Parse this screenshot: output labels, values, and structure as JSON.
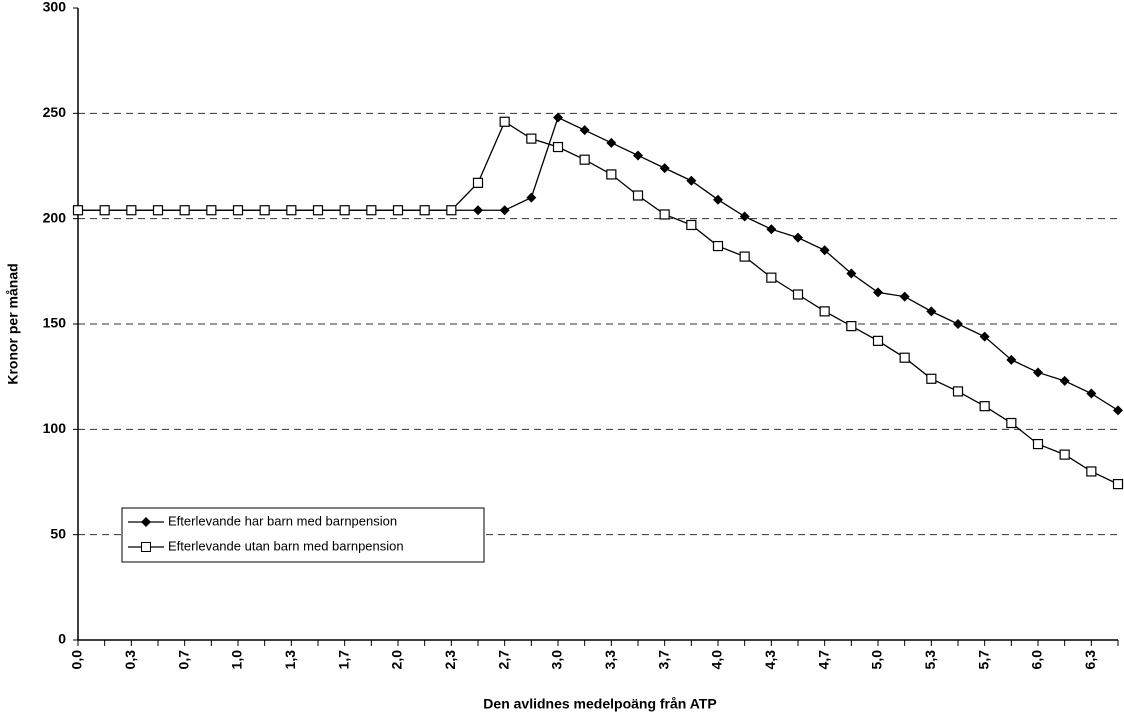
{
  "chart_data": {
    "type": "line",
    "xlabel": "Den avlidnes medelpoäng från ATP",
    "ylabel": "Kronor per månad",
    "categories": [
      "0,0",
      null,
      "0,3",
      null,
      "0,7",
      null,
      "1,0",
      null,
      "1,3",
      null,
      "1,7",
      null,
      "2,0",
      null,
      "2,3",
      null,
      "2,7",
      null,
      "3,0",
      null,
      "3,3",
      null,
      "3,7",
      null,
      "4,0",
      null,
      "4,3",
      null,
      "4,7",
      null,
      "5,0",
      null,
      "5,3",
      null,
      "5,7",
      null,
      "6,0",
      null,
      "6,3",
      null
    ],
    "series": [
      {
        "name": "Efterlevande har barn med barnpension",
        "color": "#000000",
        "marker": "diamond",
        "values": [
          204,
          204,
          204,
          204,
          204,
          204,
          204,
          204,
          204,
          204,
          204,
          204,
          204,
          204,
          204,
          204,
          204,
          210,
          248,
          242,
          236,
          230,
          224,
          218,
          209,
          201,
          195,
          191,
          185,
          174,
          165,
          163,
          156,
          150,
          144,
          133,
          127,
          123,
          117,
          109
        ]
      },
      {
        "name": "Efterlevande utan barn med barnpension",
        "color": "#000000",
        "marker": "square",
        "values": [
          204,
          204,
          204,
          204,
          204,
          204,
          204,
          204,
          204,
          204,
          204,
          204,
          204,
          204,
          204,
          217,
          246,
          238,
          234,
          228,
          221,
          211,
          202,
          197,
          187,
          182,
          172,
          164,
          156,
          149,
          142,
          134,
          124,
          118,
          111,
          103,
          93,
          88,
          80,
          74
        ]
      }
    ],
    "ylim": [
      0,
      300
    ],
    "yticks": [
      0,
      50,
      100,
      150,
      200,
      250,
      300
    ],
    "grid": true,
    "legend": "lower left"
  }
}
